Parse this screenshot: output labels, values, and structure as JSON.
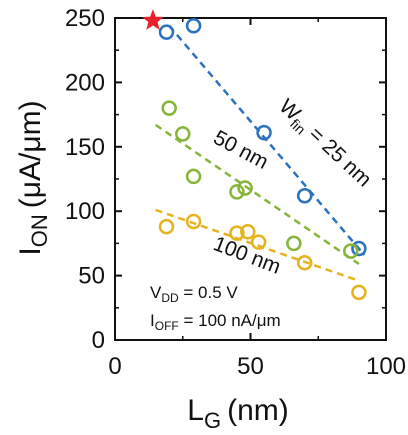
{
  "chart_data": {
    "type": "scatter",
    "xlabel": "L",
    "xlabel_sub": "G",
    "xlabel_unit": "(nm)",
    "ylabel": "I",
    "ylabel_sub": "ON",
    "ylabel_unit": "(μA/μm)",
    "xlim": [
      0,
      100
    ],
    "ylim": [
      0,
      250
    ],
    "xticks": [
      0,
      50,
      100
    ],
    "yticks": [
      0,
      50,
      100,
      150,
      200,
      250
    ],
    "grid": false,
    "series": [
      {
        "color": "#2a72c0",
        "points": [
          [
            19,
            239
          ],
          [
            29,
            244
          ],
          [
            55,
            161
          ],
          [
            70,
            112
          ],
          [
            90,
            71
          ]
        ],
        "trend": [
          [
            20,
            244
          ],
          [
            92,
            66
          ]
        ]
      },
      {
        "color": "#86b53a",
        "points": [
          [
            20,
            180
          ],
          [
            25,
            160
          ],
          [
            29,
            127
          ],
          [
            45,
            115
          ],
          [
            48,
            118
          ],
          [
            66,
            75
          ],
          [
            87,
            69
          ]
        ],
        "trend": [
          [
            15,
            167
          ],
          [
            90,
            59
          ]
        ]
      },
      {
        "color": "#e6b21e",
        "points": [
          [
            19,
            88
          ],
          [
            29,
            92
          ],
          [
            45,
            83
          ],
          [
            49,
            84
          ],
          [
            53,
            76
          ],
          [
            70,
            60
          ],
          [
            90,
            37
          ]
        ],
        "trend": [
          [
            15,
            101
          ],
          [
            90,
            46
          ]
        ]
      }
    ],
    "star": {
      "x": 14,
      "y": 248,
      "color": "#e8202a"
    },
    "annotations": {
      "wfin_main": "W",
      "wfin_sub": "fin",
      "wfin_value": " = 25 nm",
      "label_50": "50 nm",
      "label_100": "100 nm",
      "vdd_main": "V",
      "vdd_sub": "DD",
      "vdd_value": " = 0.5 V",
      "ioff_main": "I",
      "ioff_sub": "OFF",
      "ioff_value": " = 100 nA/μm"
    }
  }
}
